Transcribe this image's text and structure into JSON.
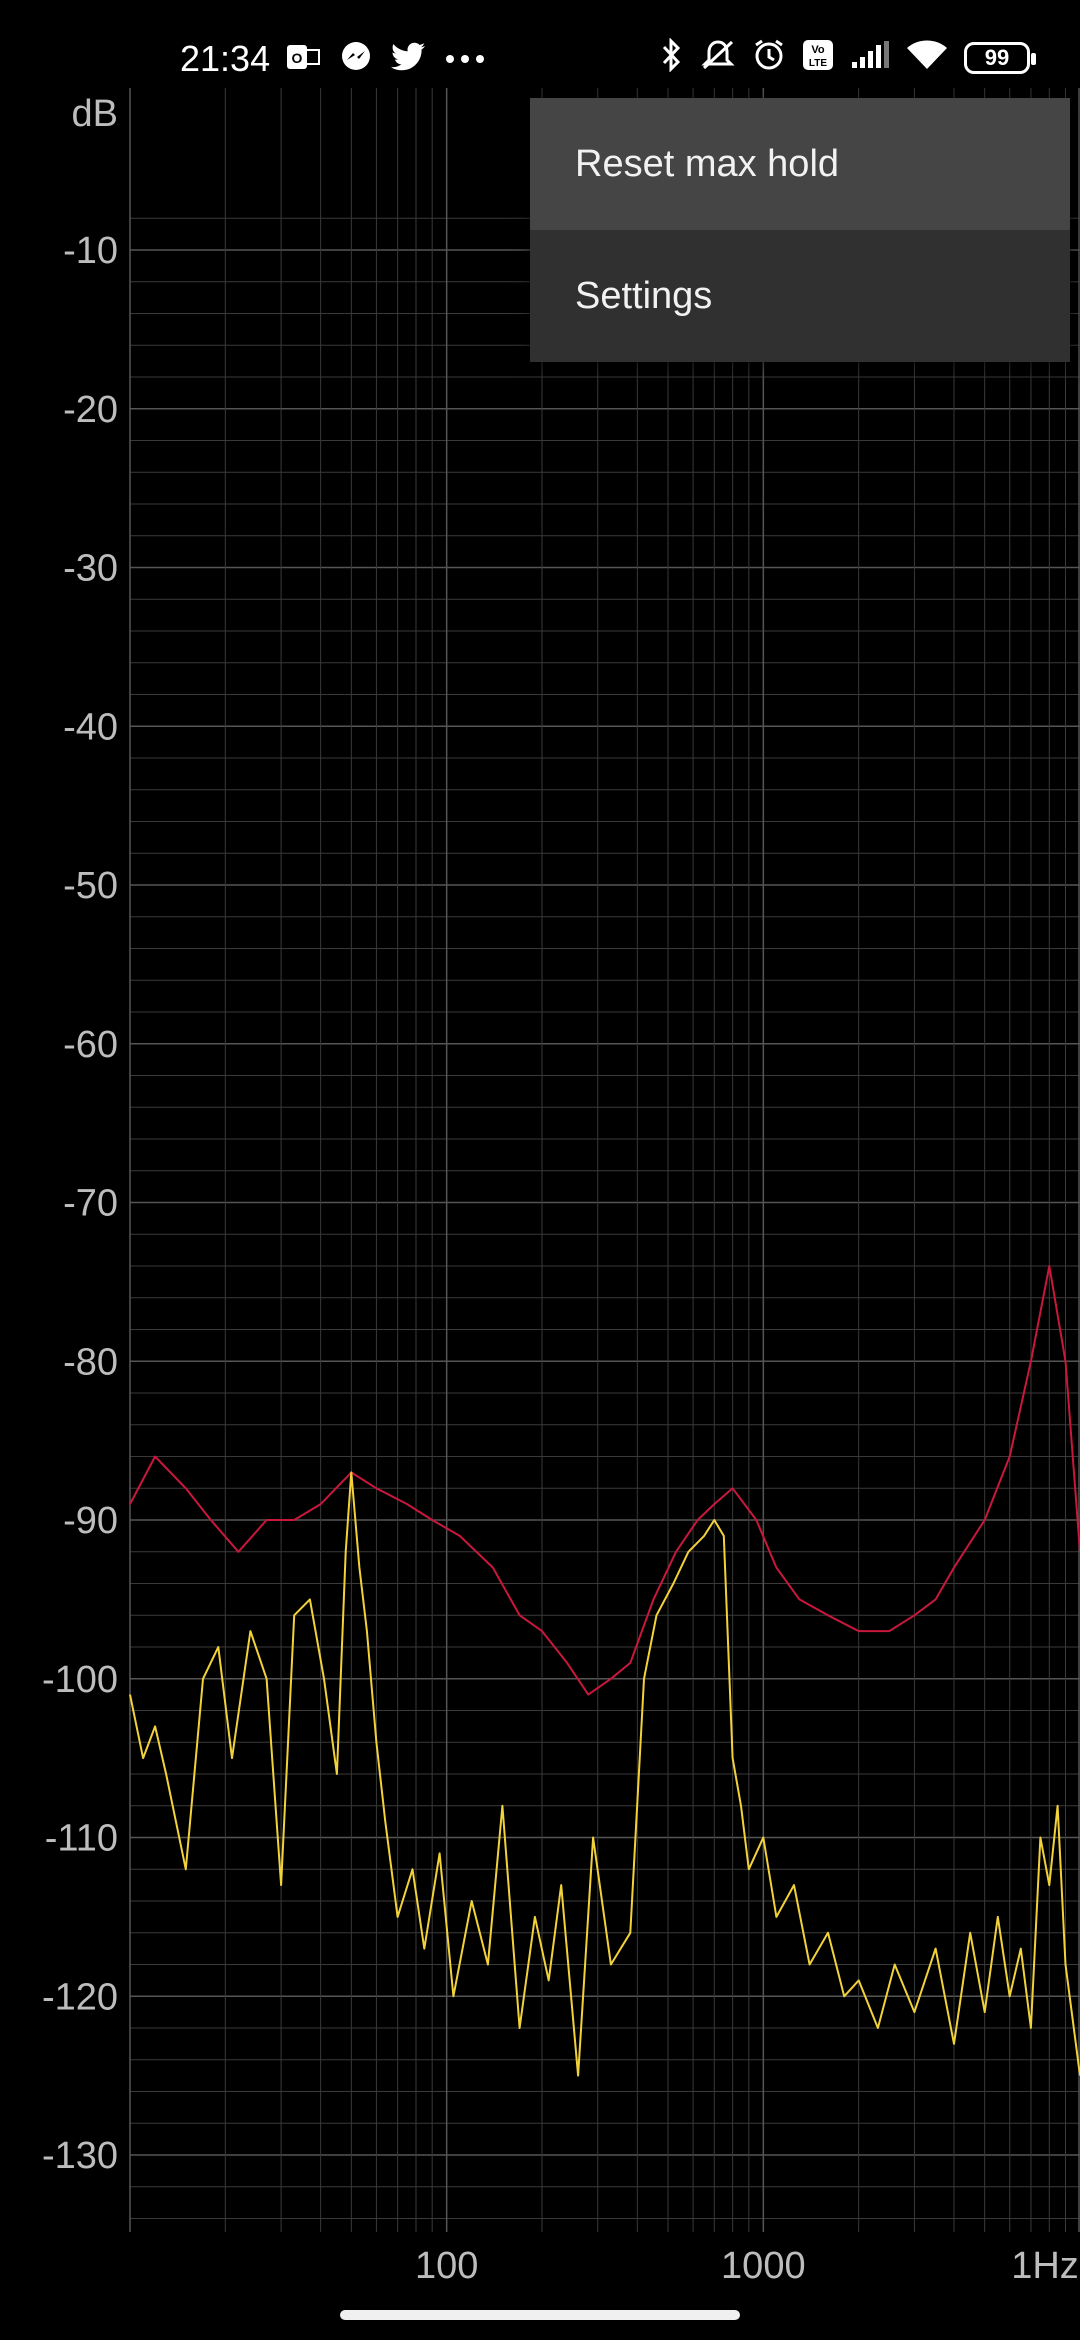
{
  "status_bar": {
    "time": "21:34",
    "left_icons": [
      "outlook-icon",
      "messenger-icon",
      "twitter-icon",
      "more-dots-icon"
    ],
    "right_icons": [
      "bluetooth-icon",
      "muted-bell-icon",
      "alarm-icon",
      "volte-icon",
      "signal-icon",
      "wifi-icon"
    ],
    "battery": "99"
  },
  "menu": {
    "items": [
      {
        "label": "Reset max hold"
      },
      {
        "label": "Settings"
      }
    ]
  },
  "chart_data": {
    "type": "line",
    "xlabel": "Hz",
    "ylabel": "dB",
    "x_scale": "log",
    "xlim": [
      10,
      10000
    ],
    "ylim": [
      -135,
      -8
    ],
    "x_ticks": [
      "100",
      "1000",
      "1Hz"
    ],
    "y_ticks": [
      "-10",
      "-20",
      "-30",
      "-40",
      "-50",
      "-60",
      "-70",
      "-80",
      "-90",
      "-100",
      "-110",
      "-120",
      "-130"
    ],
    "grid": true,
    "colors": {
      "max_hold": "#c8183c",
      "live": "#f2d23a",
      "grid": "#3a3a3a",
      "grid_major": "#555555"
    },
    "series": [
      {
        "key": "max_hold",
        "x": [
          10,
          12,
          15,
          18,
          22,
          27,
          33,
          40,
          50,
          60,
          75,
          90,
          110,
          140,
          170,
          200,
          240,
          280,
          330,
          380,
          450,
          530,
          620,
          700,
          800,
          950,
          1100,
          1300,
          1600,
          2000,
          2500,
          3000,
          3500,
          4000,
          5000,
          6000,
          7000,
          8000,
          9000,
          10000
        ],
        "values": [
          -89,
          -86,
          -88,
          -90,
          -92,
          -90,
          -90,
          -89,
          -87,
          -88,
          -89,
          -90,
          -91,
          -93,
          -96,
          -97,
          -99,
          -101,
          -100,
          -99,
          -95,
          -92,
          -90,
          -89,
          -88,
          -90,
          -93,
          -95,
          -96,
          -97,
          -97,
          -96,
          -95,
          -93,
          -90,
          -86,
          -80,
          -74,
          -80,
          -92
        ]
      },
      {
        "key": "live",
        "x": [
          10,
          11,
          12,
          13,
          15,
          17,
          19,
          21,
          24,
          27,
          30,
          33,
          37,
          41,
          45,
          48,
          50,
          53,
          56,
          60,
          64,
          70,
          78,
          85,
          95,
          105,
          120,
          135,
          150,
          170,
          190,
          210,
          230,
          260,
          290,
          330,
          380,
          420,
          460,
          520,
          580,
          650,
          700,
          750,
          800,
          850,
          900,
          1000,
          1100,
          1250,
          1400,
          1600,
          1800,
          2000,
          2300,
          2600,
          3000,
          3500,
          4000,
          4500,
          5000,
          5500,
          6000,
          6500,
          7000,
          7500,
          8000,
          8500,
          9000,
          10000
        ],
        "values": [
          -101,
          -105,
          -103,
          -106,
          -112,
          -100,
          -98,
          -105,
          -97,
          -100,
          -113,
          -96,
          -95,
          -100,
          -106,
          -92,
          -87,
          -93,
          -97,
          -104,
          -109,
          -115,
          -112,
          -117,
          -111,
          -120,
          -114,
          -118,
          -108,
          -122,
          -115,
          -119,
          -113,
          -125,
          -110,
          -118,
          -116,
          -100,
          -96,
          -94,
          -92,
          -91,
          -90,
          -91,
          -105,
          -108,
          -112,
          -110,
          -115,
          -113,
          -118,
          -116,
          -120,
          -119,
          -122,
          -118,
          -121,
          -117,
          -123,
          -116,
          -121,
          -115,
          -120,
          -117,
          -122,
          -110,
          -113,
          -108,
          -118,
          -125
        ]
      }
    ]
  }
}
